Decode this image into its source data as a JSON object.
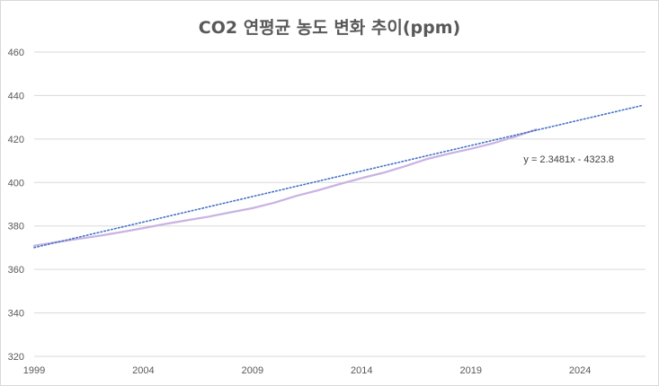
{
  "chart_data": {
    "type": "line",
    "title": "CO2 연평균 농도 변화 추이(ppm)",
    "xlabel": "",
    "ylabel": "",
    "xlim": [
      1999,
      2027
    ],
    "ylim": [
      320,
      460
    ],
    "xticks": [
      "1999",
      "2004",
      "2009",
      "2014",
      "2019",
      "2024"
    ],
    "yticks": [
      "320",
      "340",
      "360",
      "380",
      "400",
      "420",
      "440",
      "460"
    ],
    "grid": true,
    "series": [
      {
        "x": [
          1999,
          2000,
          2001,
          2002,
          2003,
          2004,
          2005,
          2006,
          2007,
          2008,
          2009,
          2010,
          2011,
          2012,
          2013,
          2014,
          2015,
          2016,
          2017,
          2018,
          2019,
          2020,
          2021,
          2022
        ],
        "values": [
          370.9,
          372.5,
          374.0,
          375.5,
          377.2,
          379.0,
          380.9,
          382.6,
          384.3,
          386.3,
          388.2,
          390.7,
          393.8,
          396.4,
          399.3,
          402.0,
          404.5,
          407.5,
          410.8,
          413.3,
          415.5,
          418.0,
          421.0,
          424.4
        ],
        "color": "#c9b3e3"
      }
    ],
    "trendline": {
      "type": "linear",
      "equation": "y = 2.3481x - 4323.8",
      "slope": 2.3481,
      "intercept": -4323.8,
      "x_range": [
        1999,
        2026.8
      ],
      "color": "#4472c4"
    }
  }
}
